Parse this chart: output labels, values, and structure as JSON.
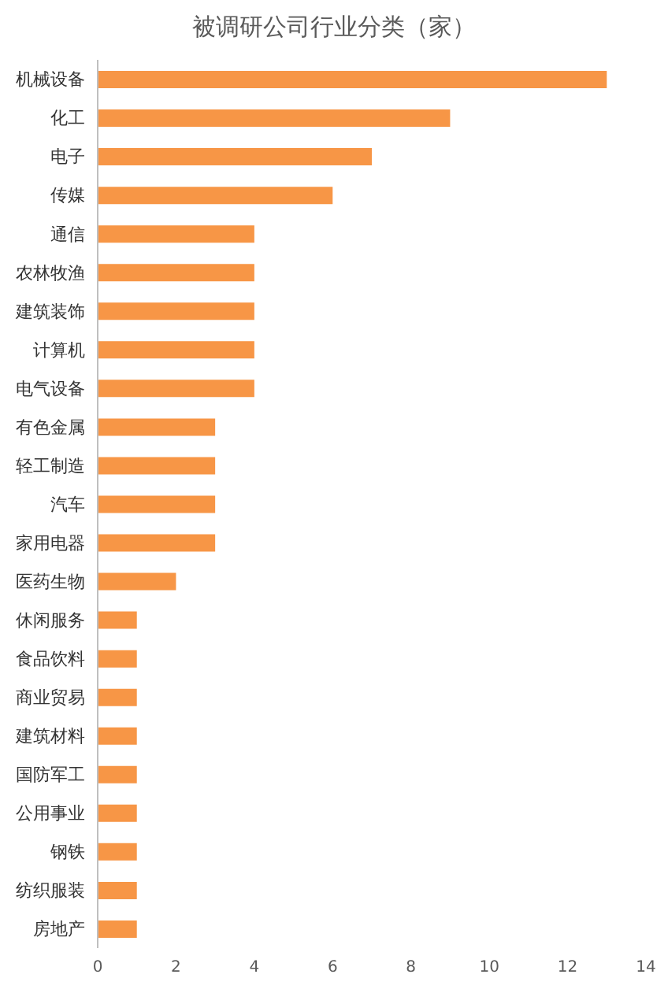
{
  "chart_data": {
    "type": "bar",
    "orientation": "horizontal",
    "title": "被调研公司行业分类（家）",
    "categories": [
      "机械设备",
      "化工",
      "电子",
      "传媒",
      "通信",
      "农林牧渔",
      "建筑装饰",
      "计算机",
      "电气设备",
      "有色金属",
      "轻工制造",
      "汽车",
      "家用电器",
      "医药生物",
      "休闲服务",
      "食品饮料",
      "商业贸易",
      "建筑材料",
      "国防军工",
      "公用事业",
      "钢铁",
      "纺织服装",
      "房地产"
    ],
    "values": [
      13,
      9,
      7,
      6,
      4,
      4,
      4,
      4,
      4,
      3,
      3,
      3,
      3,
      2,
      1,
      1,
      1,
      1,
      1,
      1,
      1,
      1,
      1
    ],
    "color": "#f79646",
    "xlim": [
      0,
      14
    ],
    "xticks": [
      0,
      2,
      4,
      6,
      8,
      10,
      12,
      14
    ],
    "grid": false
  }
}
